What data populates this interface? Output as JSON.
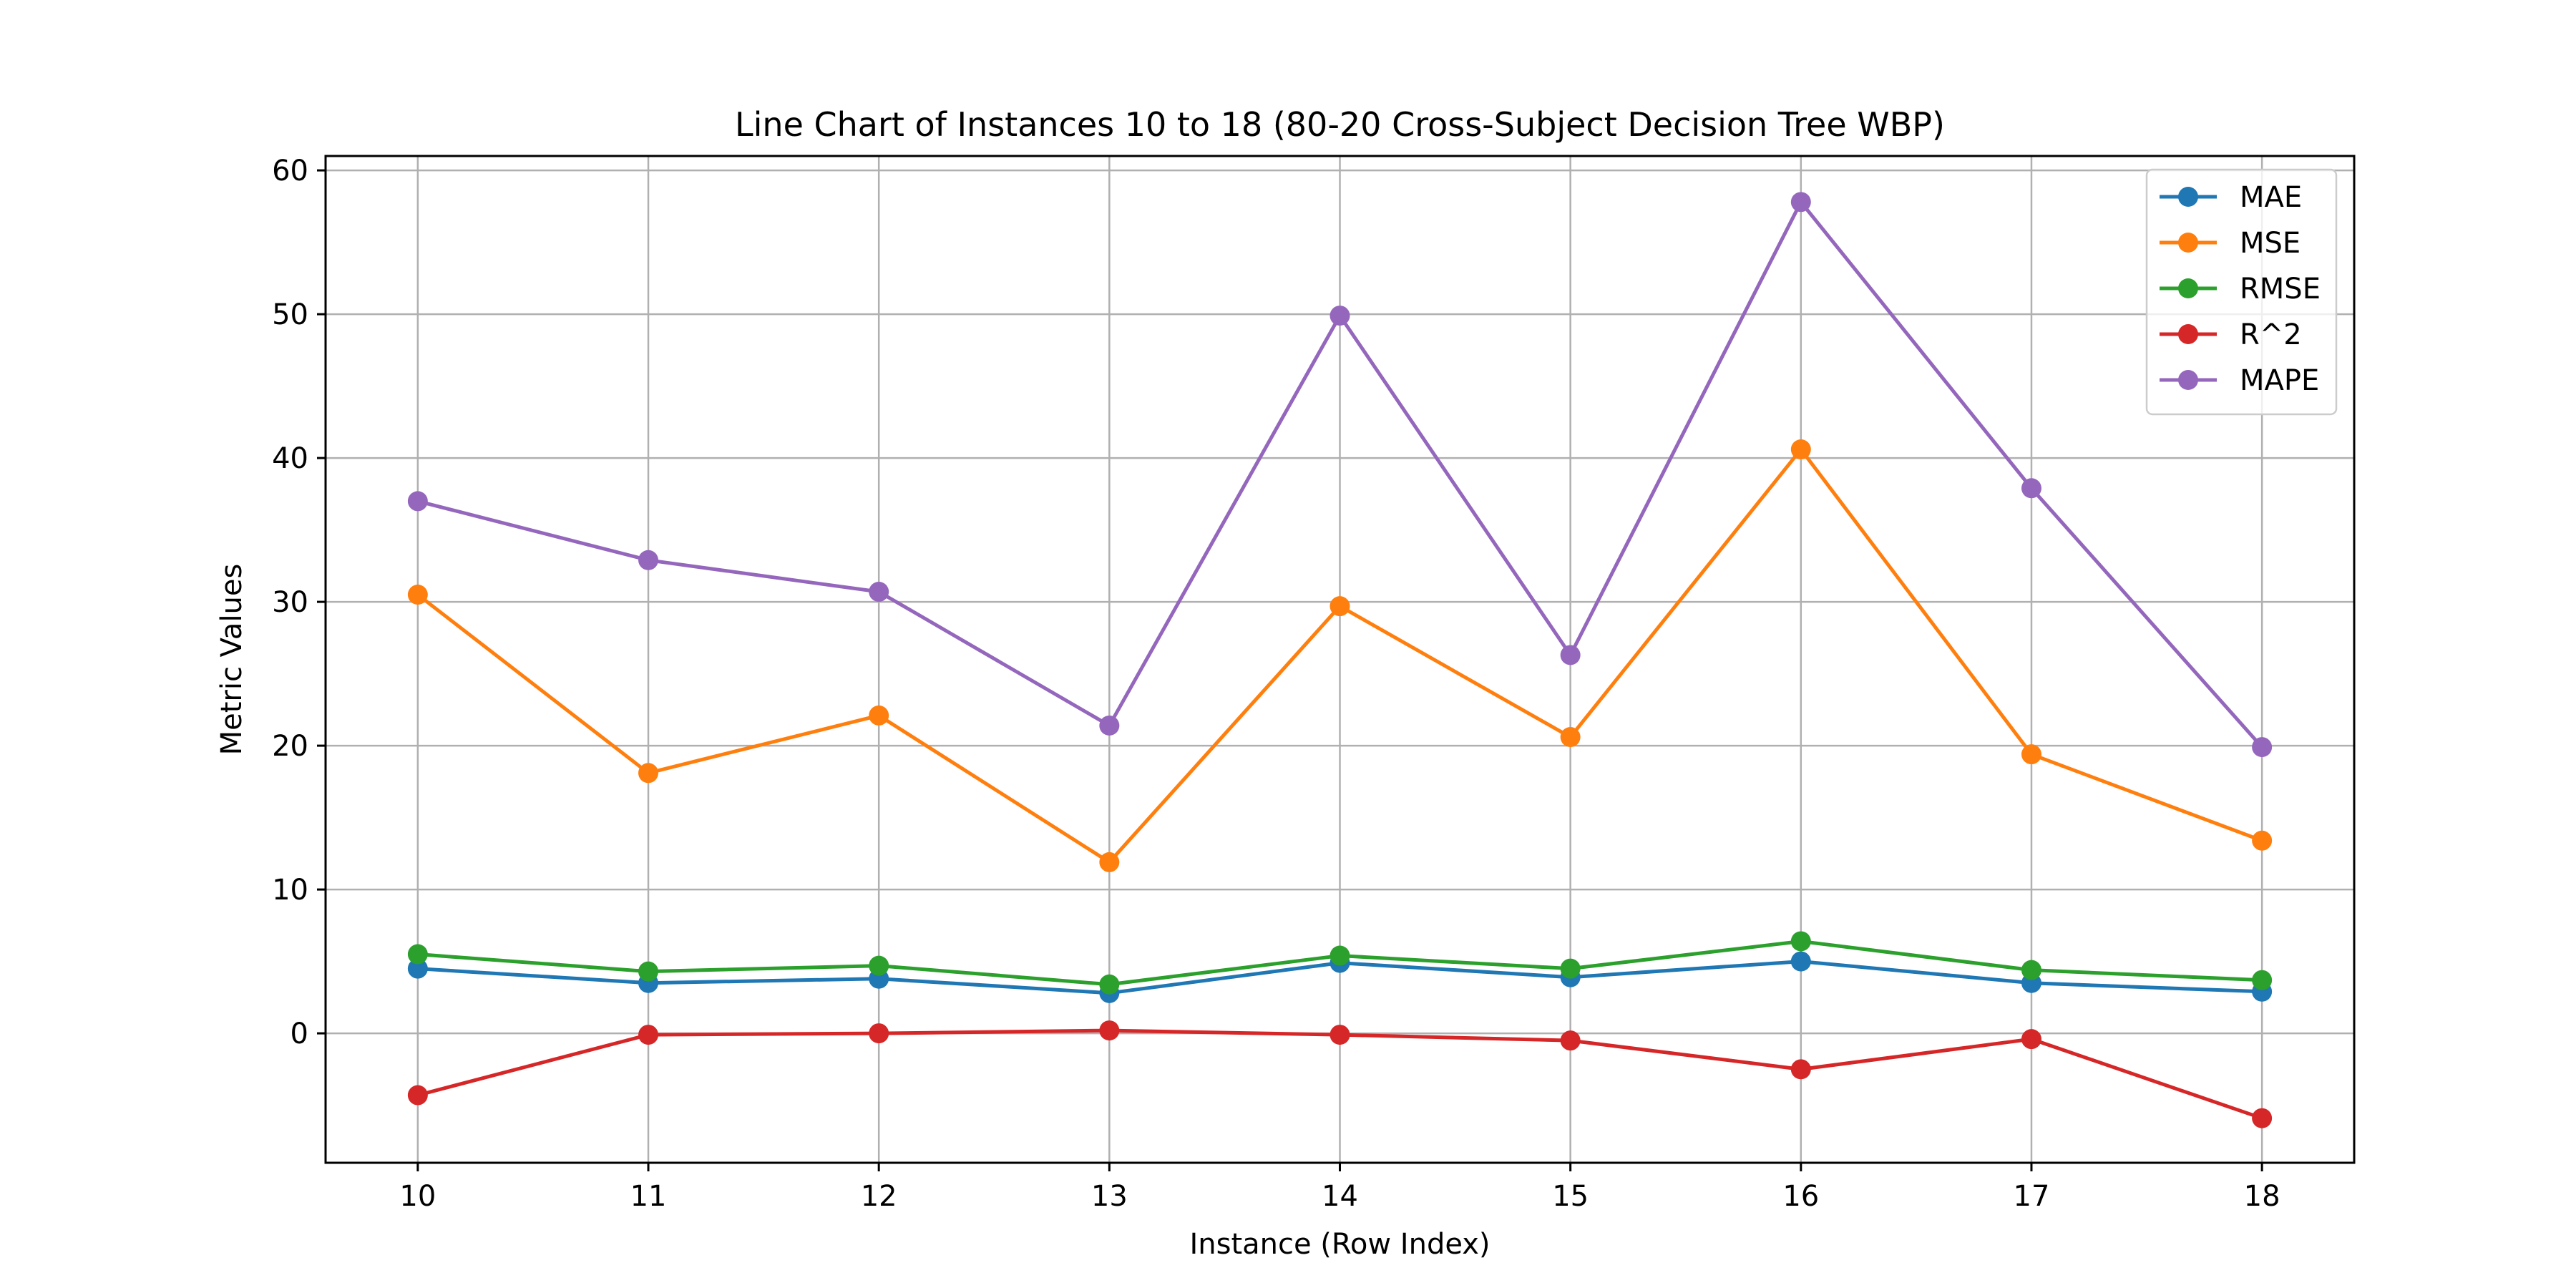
{
  "chart_data": {
    "type": "line",
    "title": "Line Chart of Instances 10 to 18 (80-20 Cross-Subject Decision Tree WBP)",
    "xlabel": "Instance (Row Index)",
    "ylabel": "Metric Values",
    "x": [
      10,
      11,
      12,
      13,
      14,
      15,
      16,
      17,
      18
    ],
    "xlim": [
      9.6,
      18.4
    ],
    "ylim": [
      -9.0,
      61.0
    ],
    "xticks": [
      "10",
      "11",
      "12",
      "13",
      "14",
      "15",
      "16",
      "17",
      "18"
    ],
    "yticks": [
      "0",
      "10",
      "20",
      "30",
      "40",
      "50",
      "60"
    ],
    "grid": true,
    "legend_position": "top-right",
    "series": [
      {
        "name": "MAE",
        "color": "#1f77b4",
        "values": [
          4.5,
          3.5,
          3.8,
          2.8,
          4.9,
          3.9,
          5.0,
          3.5,
          2.9
        ]
      },
      {
        "name": "MSE",
        "color": "#ff7f0e",
        "values": [
          30.5,
          18.1,
          22.1,
          11.9,
          29.7,
          20.6,
          40.6,
          19.4,
          13.4
        ]
      },
      {
        "name": "RMSE",
        "color": "#2ca02c",
        "values": [
          5.5,
          4.3,
          4.7,
          3.4,
          5.4,
          4.5,
          6.4,
          4.4,
          3.7
        ]
      },
      {
        "name": "R^2",
        "color": "#d62728",
        "values": [
          -4.3,
          -0.1,
          0.0,
          0.2,
          -0.1,
          -0.5,
          -2.5,
          -0.4,
          -5.9
        ]
      },
      {
        "name": "MAPE",
        "color": "#9467bd",
        "values": [
          37.0,
          32.9,
          30.7,
          21.4,
          49.9,
          26.3,
          57.8,
          37.9,
          19.9
        ]
      }
    ]
  }
}
